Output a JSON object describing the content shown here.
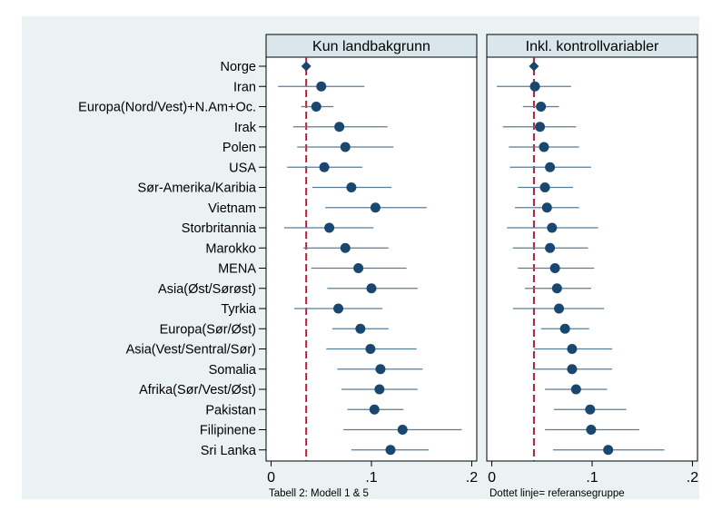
{
  "chart_data": {
    "type": "scatter",
    "subtype": "coefficient-plot",
    "categories": [
      "Norge",
      "Iran",
      "Europa(Nord/Vest)+N.Am+Oc.",
      "Irak",
      "Polen",
      "USA",
      "Sør-Amerika/Karibia",
      "Vietnam",
      "Storbritannia",
      "Marokko",
      "MENA",
      "Asia(Øst/Sørøst)",
      "Tyrkia",
      "Europa(Sør/Øst)",
      "Asia(Vest/Sentral/Sør)",
      "Somalia",
      "Afrika(Sør/Vest/Øst)",
      "Pakistan",
      "Filipinene",
      "Sri Lanka"
    ],
    "xlim": [
      -0.005,
      0.205
    ],
    "xticks": [
      0,
      0.1,
      0.2
    ],
    "xtick_labels": [
      "0",
      ".1",
      ".2"
    ],
    "grid": false,
    "colors": {
      "background": "#eaf2f3",
      "plot_bg": "#ffffff",
      "header_bg": "#d9e6eb",
      "marker": "#1a476f",
      "ci_line": "#5a7d96",
      "reference_line": "#b0203b"
    },
    "panels": [
      {
        "title": "Kun landbakgrunn",
        "note": "Tabell 2: Modell 1 & 5",
        "reference_line": 0.035,
        "estimates": [
          0.035,
          0.05,
          0.045,
          0.068,
          0.074,
          0.053,
          0.08,
          0.104,
          0.058,
          0.074,
          0.087,
          0.1,
          0.067,
          0.089,
          0.099,
          0.109,
          0.108,
          0.103,
          0.131,
          0.119
        ],
        "ci_low": [
          0.033,
          0.007,
          0.03,
          0.022,
          0.026,
          0.016,
          0.041,
          0.054,
          0.013,
          0.032,
          0.04,
          0.056,
          0.023,
          0.061,
          0.055,
          0.066,
          0.07,
          0.076,
          0.072,
          0.08
        ],
        "ci_high": [
          0.037,
          0.093,
          0.062,
          0.116,
          0.122,
          0.091,
          0.12,
          0.155,
          0.102,
          0.117,
          0.135,
          0.146,
          0.111,
          0.117,
          0.145,
          0.151,
          0.146,
          0.132,
          0.19,
          0.157
        ]
      },
      {
        "title": "Inkl. kontrollvariabler",
        "note": "Dottet linje= referansegruppe",
        "reference_line": 0.042,
        "estimates": [
          0.042,
          0.043,
          0.049,
          0.048,
          0.052,
          0.058,
          0.053,
          0.055,
          0.06,
          0.058,
          0.063,
          0.065,
          0.067,
          0.073,
          0.08,
          0.08,
          0.084,
          0.098,
          0.099,
          0.116
        ],
        "ci_low": [
          0.038,
          0.005,
          0.031,
          0.011,
          0.017,
          0.018,
          0.026,
          0.023,
          0.015,
          0.021,
          0.026,
          0.033,
          0.021,
          0.049,
          0.042,
          0.041,
          0.053,
          0.062,
          0.053,
          0.061
        ],
        "ci_high": [
          0.046,
          0.079,
          0.067,
          0.084,
          0.087,
          0.099,
          0.081,
          0.087,
          0.106,
          0.096,
          0.102,
          0.099,
          0.112,
          0.097,
          0.12,
          0.12,
          0.115,
          0.134,
          0.147,
          0.172
        ]
      }
    ]
  }
}
